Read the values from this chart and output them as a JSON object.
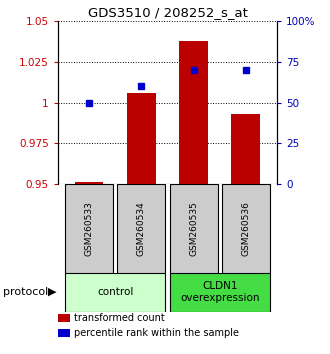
{
  "title": "GDS3510 / 208252_s_at",
  "samples": [
    "GSM260533",
    "GSM260534",
    "GSM260535",
    "GSM260536"
  ],
  "transformed_count": [
    0.951,
    1.006,
    1.038,
    0.993
  ],
  "percentile_rank": [
    50,
    60,
    70,
    70
  ],
  "ylim_left": [
    0.95,
    1.05
  ],
  "ylim_right": [
    0,
    100
  ],
  "yticks_left": [
    0.95,
    0.975,
    1.0,
    1.025,
    1.05
  ],
  "ytick_labels_left": [
    "0.95",
    "0.975",
    "1",
    "1.025",
    "1.05"
  ],
  "yticks_right": [
    0,
    25,
    50,
    75,
    100
  ],
  "ytick_labels_right": [
    "0",
    "25",
    "50",
    "75",
    "100%"
  ],
  "bar_color": "#bb0000",
  "dot_color": "#0000cc",
  "bar_width": 0.55,
  "groups": [
    {
      "label": "control",
      "samples": [
        0,
        1
      ],
      "color": "#ccffcc"
    },
    {
      "label": "CLDN1\noverexpression",
      "samples": [
        2,
        3
      ],
      "color": "#44dd44"
    }
  ],
  "protocol_label": "protocol",
  "legend_items": [
    {
      "color": "#bb0000",
      "label": "  transformed count"
    },
    {
      "color": "#0000cc",
      "label": "  percentile rank within the sample"
    }
  ],
  "plot_bg_color": "#ffffff",
  "sample_box_color": "#cccccc"
}
